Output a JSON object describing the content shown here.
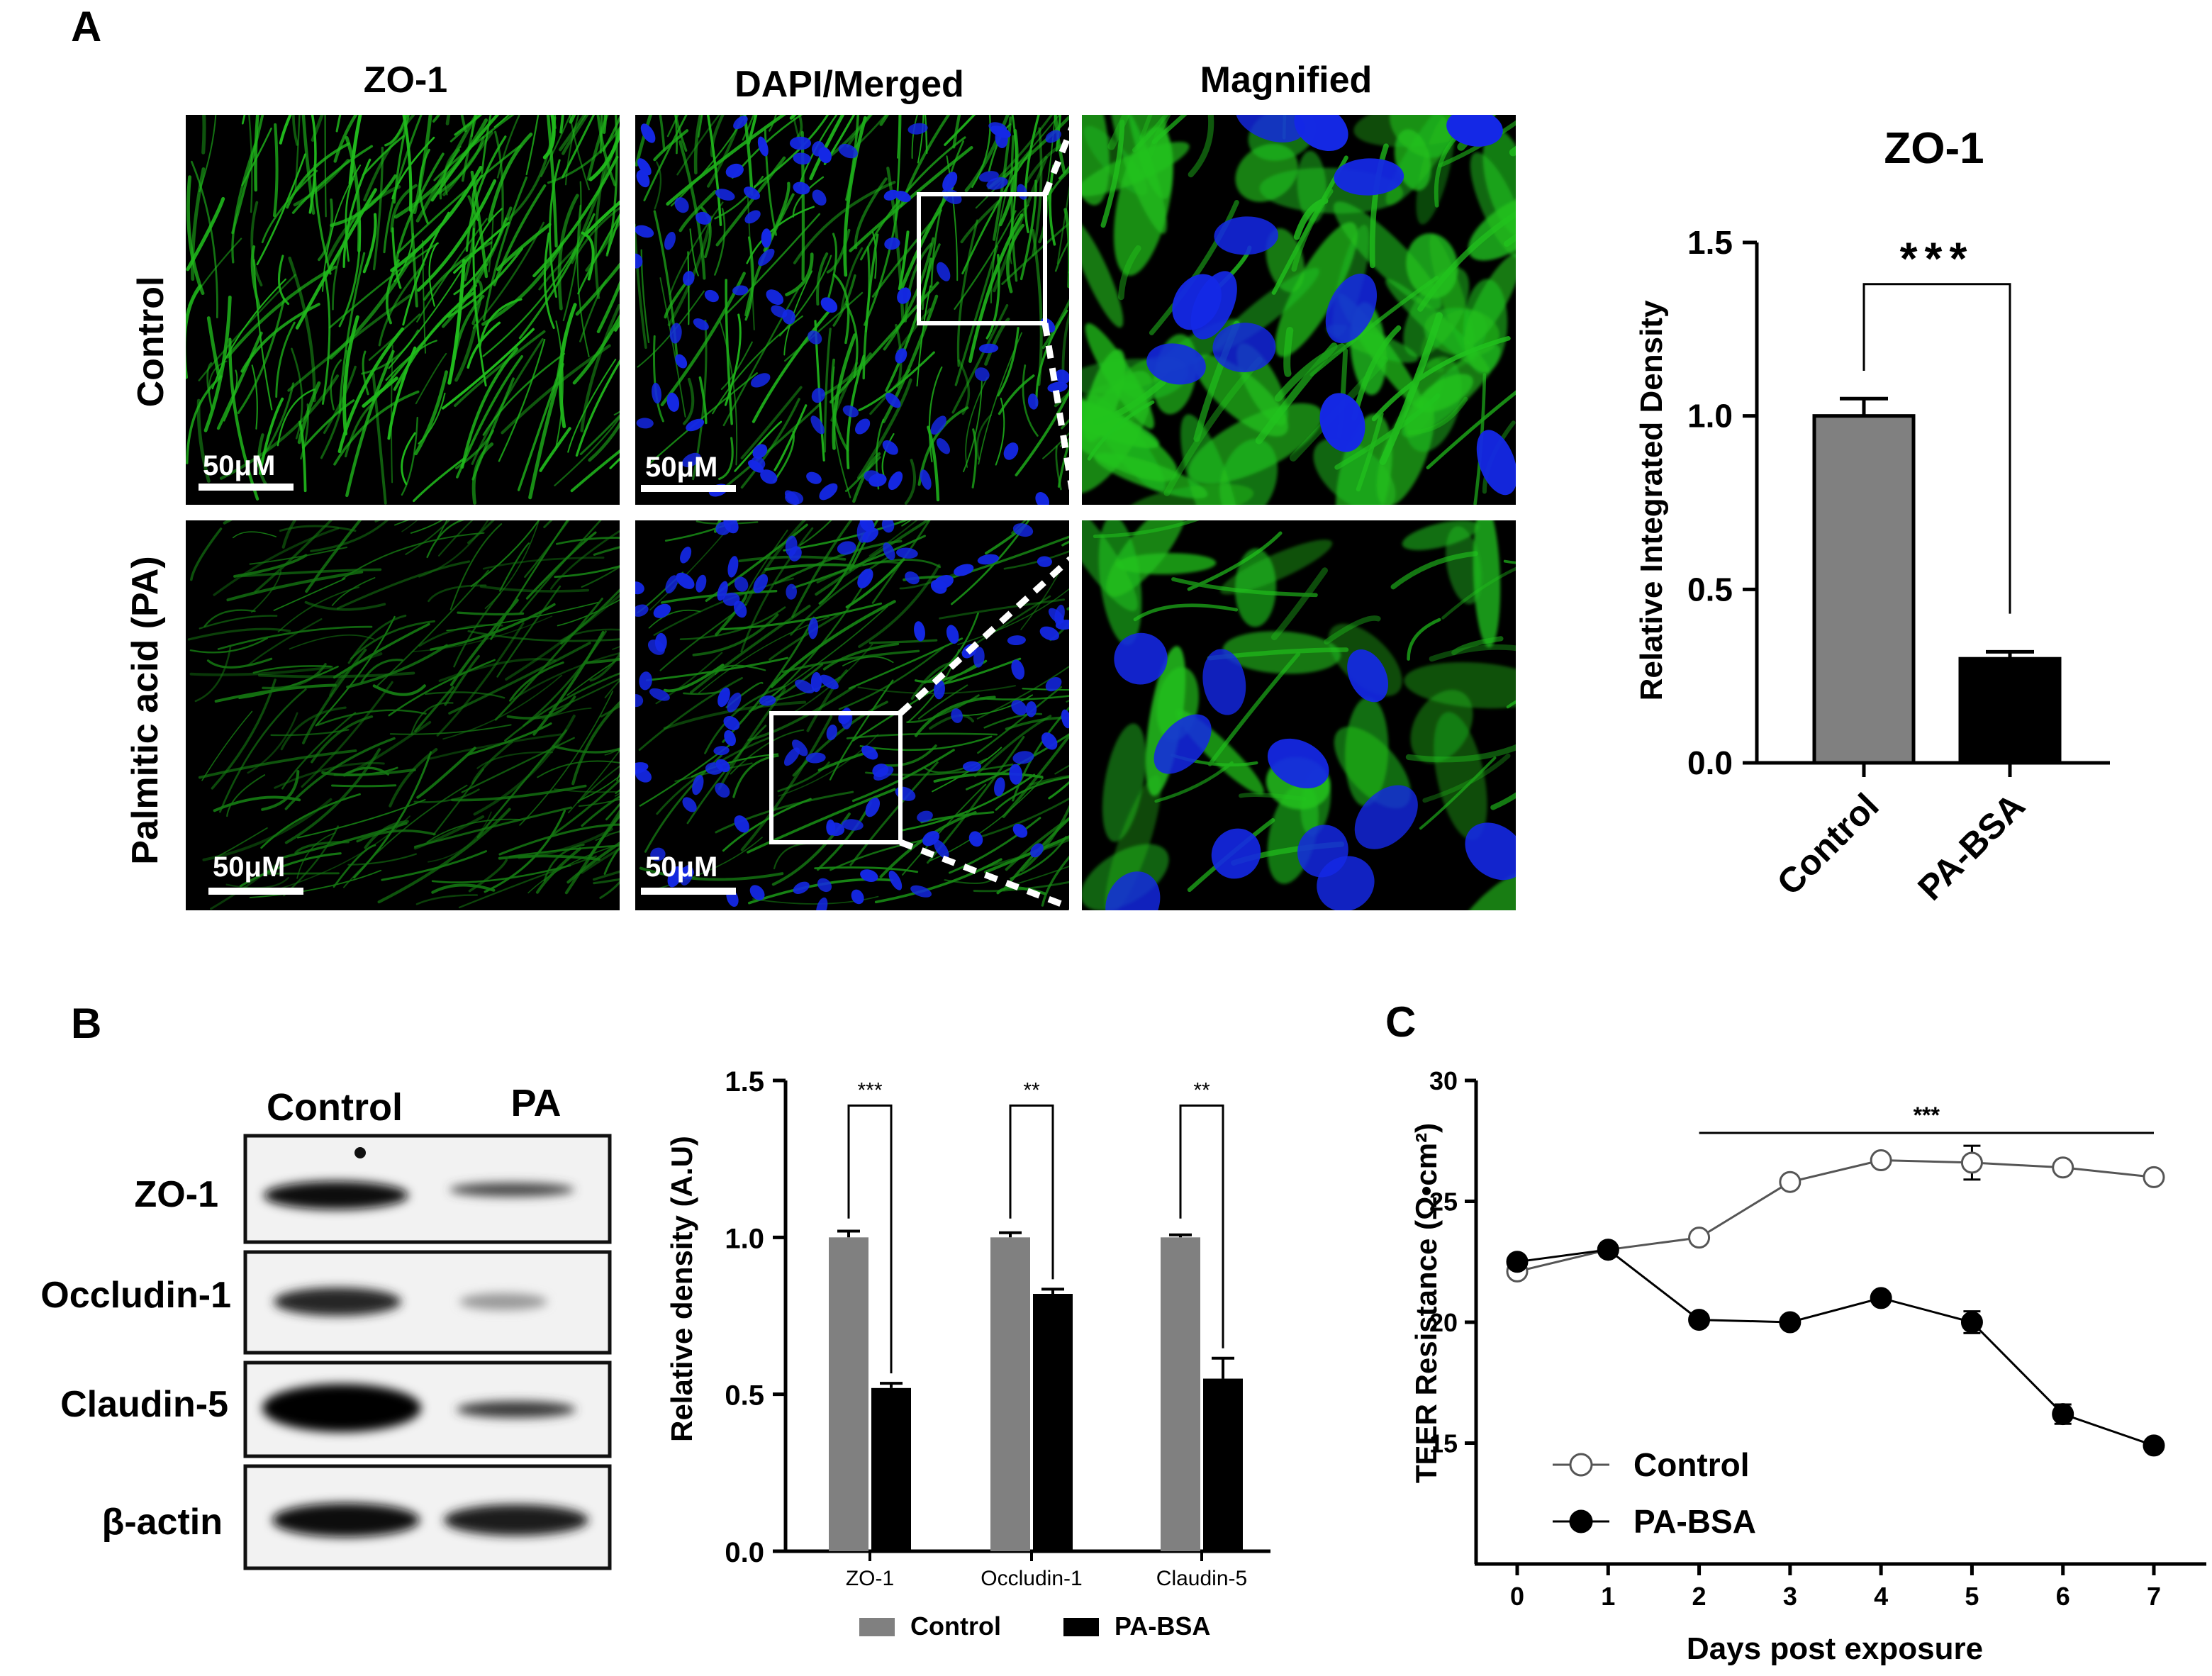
{
  "panels": {
    "a": {
      "letter": "A",
      "columns": [
        "ZO-1",
        "DAPI/Merged",
        "Magnified"
      ],
      "rows": [
        "Control",
        "Palmitic acid (PA)"
      ],
      "scale_bar": "50μM",
      "colors": {
        "zo1": "#22c41e",
        "dapi": "#1428e6"
      }
    },
    "b": {
      "letter": "B",
      "blot_columns": [
        "Control",
        "PA"
      ],
      "blot_rows": [
        "ZO-1",
        "Occludin-1",
        "Claudin-5",
        "β-actin"
      ]
    },
    "c": {
      "letter": "C"
    }
  },
  "chart_data": [
    {
      "id": "zo1_density",
      "type": "bar",
      "title": "ZO-1",
      "ylabel": "Relative Integrated Density",
      "categories": [
        "Control",
        "PA-BSA"
      ],
      "values": [
        1.0,
        0.3
      ],
      "errors": [
        0.05,
        0.02
      ],
      "colors": [
        "#808080",
        "#000000"
      ],
      "ylim": [
        0,
        1.5
      ],
      "yticks": [
        "0.0",
        "0.5",
        "1.0",
        "1.5"
      ],
      "significance": "***"
    },
    {
      "id": "blot_density",
      "type": "bar",
      "ylabel": "Relative density (A.U)",
      "categories": [
        "ZO-1",
        "Occludin-1",
        "Claudin-5"
      ],
      "series": [
        {
          "name": "Control",
          "values": [
            1.0,
            1.0,
            1.0
          ],
          "errors": [
            0.02,
            0.015,
            0.008
          ],
          "color": "#808080"
        },
        {
          "name": "PA-BSA",
          "values": [
            0.52,
            0.82,
            0.55
          ],
          "errors": [
            0.015,
            0.015,
            0.065
          ],
          "color": "#000000"
        }
      ],
      "ylim": [
        0,
        1.5
      ],
      "yticks": [
        "0.0",
        "0.5",
        "1.0",
        "1.5"
      ],
      "significance": [
        "***",
        "**",
        "**"
      ],
      "legend": "bottom"
    },
    {
      "id": "teer",
      "type": "line",
      "xlabel": "Days post exposure",
      "ylabel": "TEER Resistance (Ω•cm²)",
      "x": [
        0,
        1,
        2,
        3,
        4,
        5,
        6,
        7
      ],
      "series": [
        {
          "name": "Control",
          "values": [
            22.1,
            23.0,
            23.5,
            25.8,
            26.7,
            26.6,
            26.4,
            26.0
          ],
          "errors": [
            0,
            0,
            0,
            0,
            0,
            0.7,
            0,
            0
          ],
          "marker": "open-circle"
        },
        {
          "name": "PA-BSA",
          "values": [
            22.5,
            23.0,
            20.1,
            20.0,
            21.0,
            20.0,
            16.2,
            14.9
          ],
          "errors": [
            0,
            0,
            0,
            0,
            0,
            0.45,
            0.4,
            0
          ],
          "marker": "filled-circle"
        }
      ],
      "xlim": [
        0,
        7.5
      ],
      "ylim": [
        10,
        30
      ],
      "xticks": [
        "0",
        "1",
        "2",
        "3",
        "4",
        "5",
        "6",
        "7"
      ],
      "yticks": [
        "15",
        "20",
        "25",
        "30"
      ],
      "significance": "***",
      "legend": "bottom-left"
    }
  ]
}
